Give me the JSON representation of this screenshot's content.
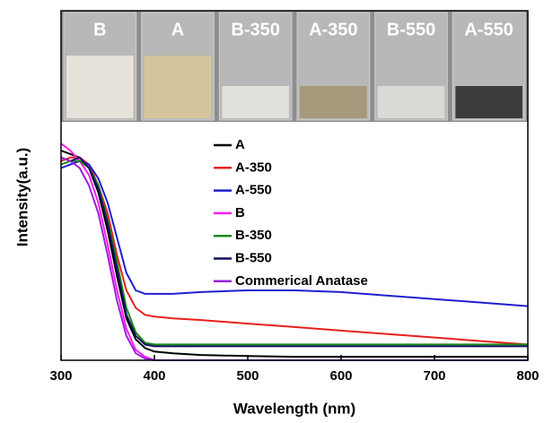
{
  "chart_data": {
    "type": "line",
    "xlabel": "Wavelength (nm)",
    "ylabel": "Intensity(a.u.)",
    "x": [
      300,
      310,
      320,
      330,
      340,
      350,
      360,
      370,
      380,
      390,
      400,
      420,
      450,
      500,
      550,
      600,
      650,
      700,
      750,
      800
    ],
    "xlim": [
      300,
      800
    ],
    "xticks": [
      300,
      400,
      500,
      600,
      700,
      800
    ],
    "ylim": [
      0,
      1
    ],
    "grid": false,
    "series": [
      {
        "name": "A",
        "color": "#000000",
        "values": [
          0.6,
          0.59,
          0.58,
          0.55,
          0.48,
          0.37,
          0.24,
          0.12,
          0.06,
          0.035,
          0.025,
          0.02,
          0.015,
          0.012,
          0.01,
          0.01,
          0.01,
          0.01,
          0.01,
          0.01
        ]
      },
      {
        "name": "A-350",
        "color": "#e8201e",
        "values": [
          0.57,
          0.58,
          0.58,
          0.56,
          0.5,
          0.42,
          0.3,
          0.2,
          0.15,
          0.13,
          0.125,
          0.12,
          0.115,
          0.105,
          0.095,
          0.085,
          0.075,
          0.065,
          0.055,
          0.045
        ]
      },
      {
        "name": "A-550",
        "color": "#1f1fd0",
        "values": [
          0.55,
          0.56,
          0.57,
          0.56,
          0.52,
          0.45,
          0.35,
          0.25,
          0.2,
          0.19,
          0.19,
          0.19,
          0.195,
          0.2,
          0.2,
          0.195,
          0.185,
          0.175,
          0.165,
          0.155
        ]
      },
      {
        "name": "B",
        "color": "#ff1cf0",
        "values": [
          0.62,
          0.6,
          0.57,
          0.53,
          0.45,
          0.33,
          0.2,
          0.09,
          0.03,
          0.01,
          0,
          0,
          0,
          0,
          0,
          0,
          0,
          0,
          0,
          0
        ]
      },
      {
        "name": "B-350",
        "color": "#1a8a1a",
        "values": [
          0.56,
          0.57,
          0.57,
          0.55,
          0.5,
          0.4,
          0.28,
          0.15,
          0.08,
          0.05,
          0.045,
          0.045,
          0.045,
          0.045,
          0.045,
          0.045,
          0.045,
          0.045,
          0.045,
          0.045
        ]
      },
      {
        "name": "B-550",
        "color": "#101060",
        "values": [
          0.58,
          0.57,
          0.58,
          0.55,
          0.49,
          0.39,
          0.26,
          0.13,
          0.07,
          0.045,
          0.04,
          0.04,
          0.04,
          0.04,
          0.04,
          0.04,
          0.04,
          0.04,
          0.04,
          0.04
        ]
      },
      {
        "name": "Commerical Anatase",
        "color": "#9a1fd8",
        "values": [
          0.58,
          0.57,
          0.55,
          0.5,
          0.42,
          0.3,
          0.17,
          0.07,
          0.02,
          0.005,
          0,
          0,
          0,
          0,
          0,
          0,
          0,
          0,
          0,
          0
        ]
      }
    ],
    "inset_labels": [
      "B",
      "A",
      "B-350",
      "A-350",
      "B-550",
      "A-550"
    ]
  }
}
